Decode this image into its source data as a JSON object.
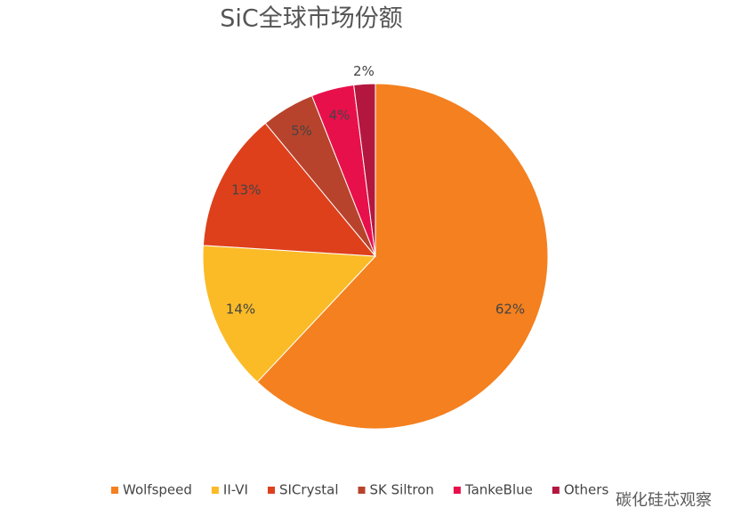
{
  "chart_data": {
    "type": "pie",
    "title": "SiC全球市场份额",
    "categories": [
      "Wolfspeed",
      "II-VI",
      "SICrystal",
      "SK Siltron",
      "TankeBlue",
      "Others"
    ],
    "values": [
      62,
      14,
      13,
      5,
      4,
      2
    ],
    "value_labels": [
      "62%",
      "14%",
      "13%",
      "5%",
      "4%",
      "2%"
    ],
    "colors": [
      "#f4801f",
      "#fbbb27",
      "#de401c",
      "#b8432c",
      "#e8104b",
      "#b3173f"
    ],
    "legend": "bottom",
    "watermark": "碳化硅芯观察"
  }
}
